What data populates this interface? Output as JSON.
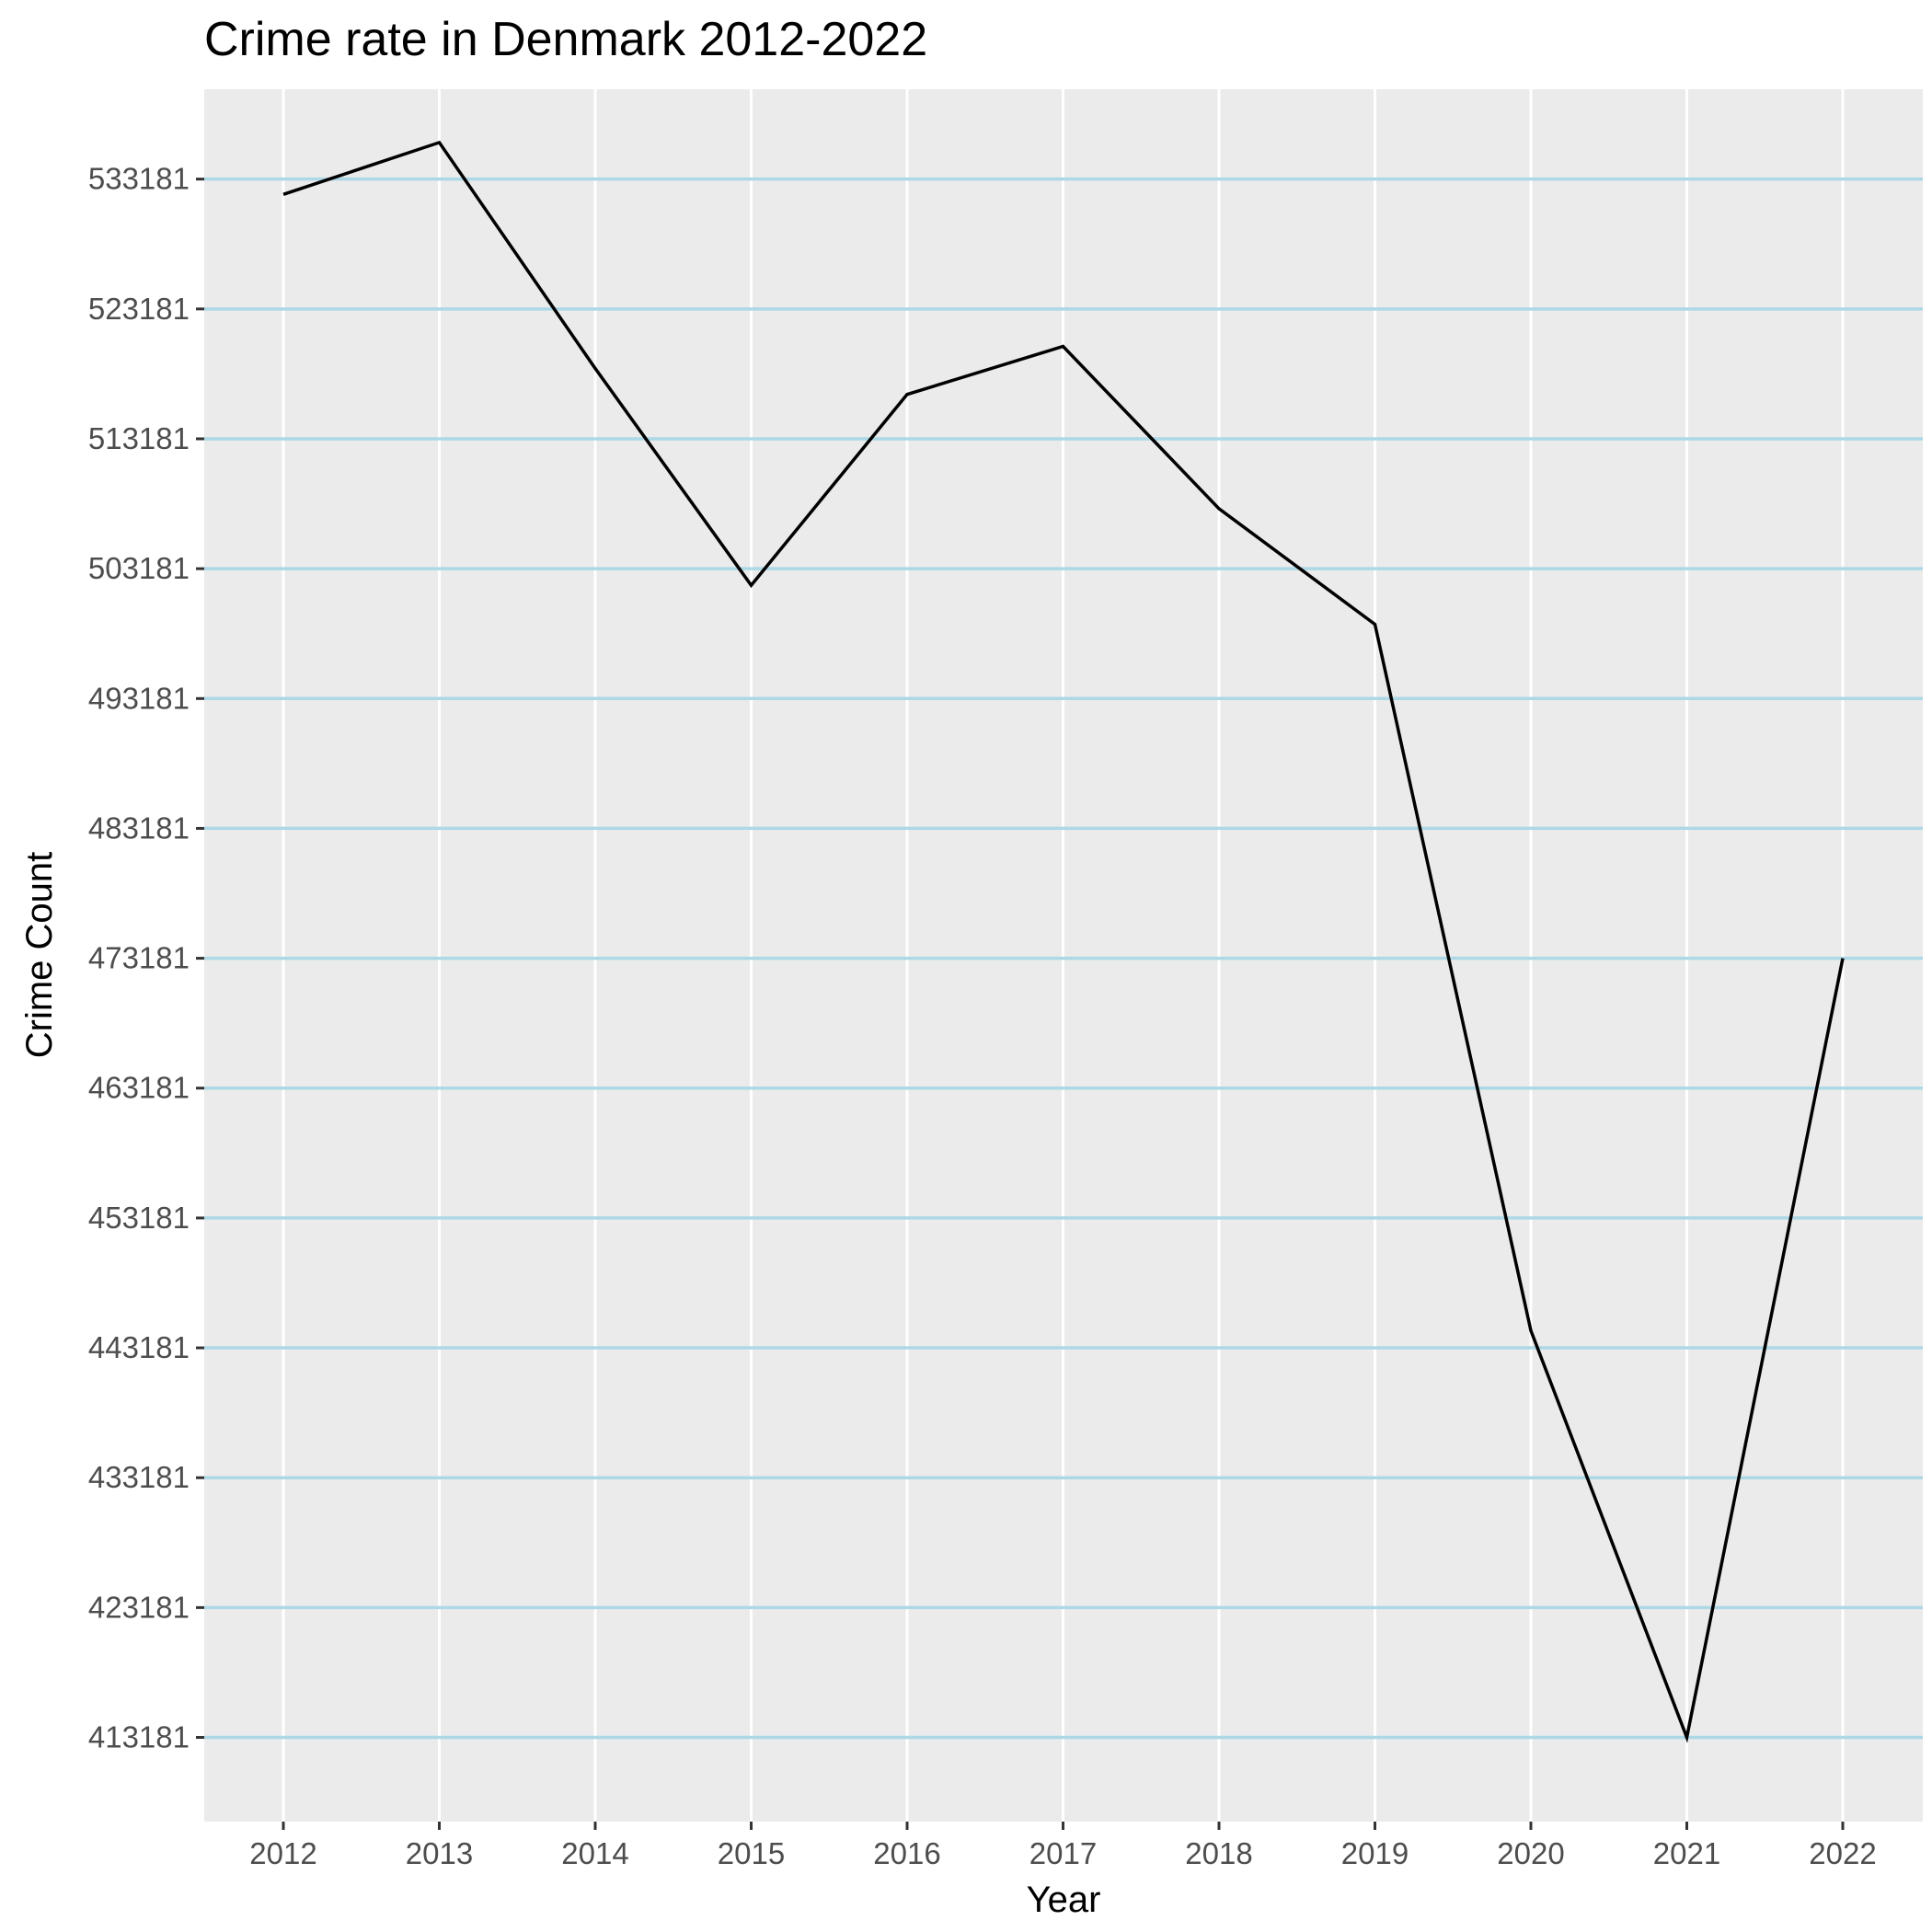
{
  "chart_data": {
    "type": "line",
    "title": "Crime rate in Denmark 2012-2022",
    "xlabel": "Year",
    "ylabel": "Crime Count",
    "categories": [
      "2012",
      "2013",
      "2014",
      "2015",
      "2016",
      "2017",
      "2018",
      "2019",
      "2020",
      "2021",
      "2022"
    ],
    "y_ticks": [
      413181,
      423181,
      433181,
      443181,
      453181,
      463181,
      473181,
      483181,
      493181,
      503181,
      513181,
      523181,
      533181
    ],
    "ylim": [
      406700,
      540100
    ],
    "series": [
      {
        "values": [
          532000,
          536000,
          518600,
          501900,
          516600,
          520300,
          507800,
          498900,
          444500,
          413181,
          473181
        ]
      }
    ],
    "grid": true,
    "colors": {
      "panel": "#ebebeb",
      "gridline_y": "#add8e6",
      "gridline_x": "#ffffff",
      "line": "#000000",
      "tick": "#333333"
    }
  }
}
